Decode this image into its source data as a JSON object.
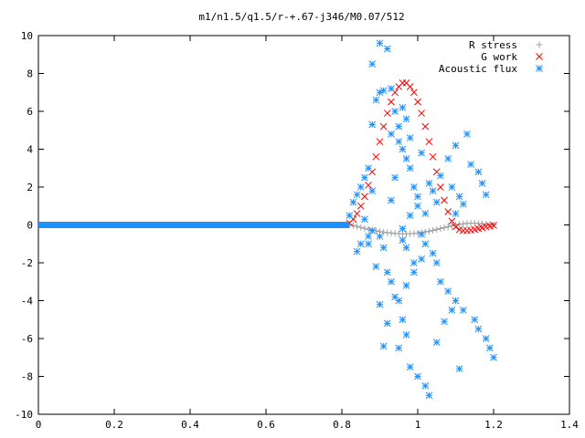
{
  "chart_data": {
    "type": "scatter",
    "title": "m1/n1.5/q1.5/r-+.67-j346/M0.07/512",
    "xlabel": "",
    "ylabel": "",
    "xlim": [
      0,
      1.4
    ],
    "ylim": [
      -10,
      10
    ],
    "x_ticks": [
      "0",
      "0.2",
      "0.4",
      "0.6",
      "0.8",
      "1",
      "1.2",
      "1.4"
    ],
    "y_ticks": [
      "10",
      "8",
      "6",
      "4",
      "2",
      "0",
      "-2",
      "-4",
      "-6",
      "-8",
      "-10"
    ],
    "grid": false,
    "legend_position": "top-right",
    "series": [
      {
        "name": "R stress",
        "marker": "plus",
        "color": "#a0a0a0",
        "x": [
          0.82,
          0.83,
          0.84,
          0.85,
          0.86,
          0.87,
          0.88,
          0.89,
          0.9,
          0.91,
          0.92,
          0.93,
          0.94,
          0.95,
          0.96,
          0.97,
          0.98,
          0.99,
          1.0,
          1.01,
          1.02,
          1.03,
          1.04,
          1.05,
          1.06,
          1.07,
          1.08,
          1.09,
          1.1,
          1.11,
          1.12,
          1.13,
          1.14,
          1.15,
          1.16,
          1.17,
          1.18,
          1.19,
          1.2
        ],
        "y": [
          0.02,
          -0.03,
          -0.08,
          -0.13,
          -0.18,
          -0.23,
          -0.27,
          -0.31,
          -0.35,
          -0.38,
          -0.41,
          -0.43,
          -0.45,
          -0.46,
          -0.47,
          -0.47,
          -0.46,
          -0.45,
          -0.43,
          -0.4,
          -0.37,
          -0.33,
          -0.29,
          -0.24,
          -0.19,
          -0.14,
          -0.09,
          -0.05,
          -0.01,
          0.03,
          0.06,
          0.08,
          0.09,
          0.09,
          0.08,
          0.06,
          0.04,
          0.02,
          0.0
        ]
      },
      {
        "name": "G work",
        "marker": "cross",
        "color": "#ff0000",
        "x": [
          0.82,
          0.83,
          0.84,
          0.85,
          0.86,
          0.87,
          0.88,
          0.89,
          0.9,
          0.91,
          0.92,
          0.93,
          0.94,
          0.95,
          0.96,
          0.97,
          0.98,
          0.99,
          1.0,
          1.01,
          1.02,
          1.03,
          1.04,
          1.05,
          1.06,
          1.07,
          1.08,
          1.09,
          1.1,
          1.11,
          1.12,
          1.13,
          1.14,
          1.15,
          1.16,
          1.17,
          1.18,
          1.19,
          1.2
        ],
        "y": [
          0.1,
          0.3,
          0.6,
          1.0,
          1.5,
          2.1,
          2.8,
          3.6,
          4.4,
          5.2,
          5.9,
          6.5,
          7.0,
          7.3,
          7.5,
          7.5,
          7.3,
          7.0,
          6.5,
          5.9,
          5.2,
          4.4,
          3.6,
          2.8,
          2.0,
          1.3,
          0.7,
          0.2,
          -0.1,
          -0.25,
          -0.3,
          -0.3,
          -0.28,
          -0.24,
          -0.2,
          -0.15,
          -0.1,
          -0.06,
          -0.02
        ]
      },
      {
        "name": "Acoustic flux",
        "marker": "star",
        "color": "#1e90ff",
        "baseline": {
          "x_from": 0.0,
          "x_to": 0.82,
          "y": 0.0
        },
        "x": [
          0.82,
          0.83,
          0.84,
          0.85,
          0.86,
          0.87,
          0.88,
          0.86,
          0.87,
          0.9,
          0.88,
          0.92,
          0.93,
          0.9,
          0.91,
          0.94,
          0.95,
          0.96,
          0.97,
          0.98,
          0.99,
          1.0,
          1.01,
          1.02,
          1.04,
          1.05,
          1.06,
          1.08,
          1.1,
          1.12,
          1.15,
          1.16,
          1.18,
          1.19,
          1.2,
          0.89,
          0.93,
          0.9,
          0.94,
          0.96,
          0.97,
          0.95,
          0.98,
          1.0,
          1.02,
          1.03,
          1.05,
          1.07,
          1.09,
          1.11,
          0.91,
          0.92,
          0.95,
          0.97,
          0.99,
          1.01,
          0.96,
          0.98,
          1.0,
          0.94,
          0.93,
          0.96,
          0.97,
          0.99,
          1.02,
          1.04,
          1.06,
          1.08,
          1.1,
          1.13,
          1.14,
          1.16,
          1.17,
          1.18,
          1.12,
          1.1,
          1.11,
          1.09,
          0.9,
          0.91,
          0.92,
          0.88,
          0.87,
          0.85,
          0.84,
          0.96,
          0.97,
          0.98,
          1.01,
          1.03,
          1.05,
          0.89,
          0.88,
          0.93,
          0.95
        ],
        "y": [
          0.5,
          1.2,
          1.6,
          2.0,
          2.5,
          3.0,
          1.8,
          0.3,
          -1.0,
          9.6,
          8.5,
          9.3,
          7.2,
          7.0,
          7.1,
          6.0,
          5.2,
          4.0,
          3.5,
          3.0,
          2.0,
          1.5,
          -0.5,
          -1.0,
          -1.5,
          -2.0,
          -3.0,
          -3.5,
          -4.0,
          -4.5,
          -5.0,
          -5.5,
          -6.0,
          -6.5,
          -7.0,
          -2.2,
          -3.0,
          -4.2,
          -3.8,
          -5.0,
          -5.8,
          -6.5,
          -7.5,
          -8.0,
          -8.5,
          -9.0,
          -6.2,
          -5.1,
          -4.5,
          -7.6,
          -6.4,
          -5.2,
          -4.0,
          -3.2,
          -2.5,
          -1.8,
          -0.8,
          0.5,
          1.0,
          2.5,
          1.3,
          -0.2,
          -1.2,
          -2.0,
          0.6,
          1.8,
          2.6,
          3.5,
          4.2,
          4.8,
          3.2,
          2.8,
          2.2,
          1.6,
          1.1,
          0.6,
          1.5,
          2.0,
          -0.6,
          -1.2,
          -2.5,
          -0.3,
          -0.6,
          -1.0,
          -1.4,
          6.2,
          5.6,
          4.6,
          3.8,
          2.2,
          1.2,
          6.6,
          5.3,
          4.8,
          4.4
        ]
      }
    ]
  }
}
